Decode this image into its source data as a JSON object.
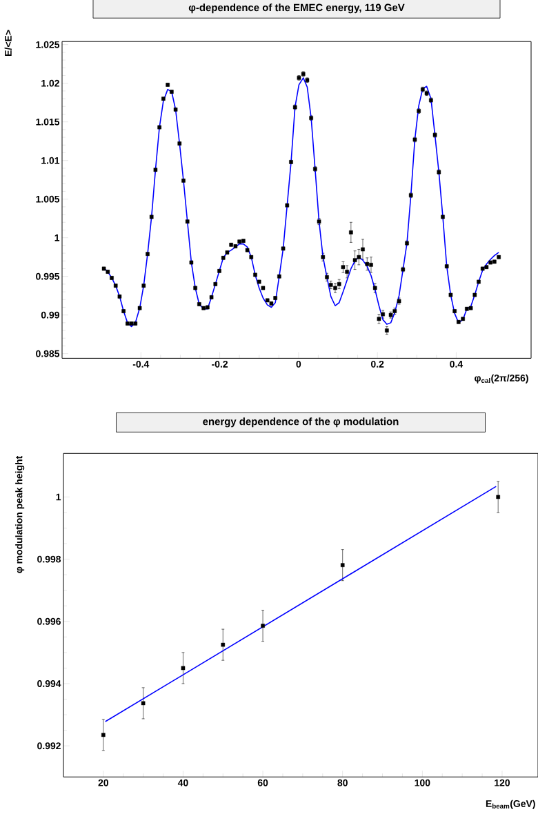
{
  "chart_data": [
    {
      "type": "scatter",
      "title": "φ-dependence of the EMEC energy, 119 GeV",
      "xlabel": "φ$_{cal}$(2π/256)",
      "ylabel": "E/<E>",
      "xlim": [
        -0.6,
        0.59
      ],
      "ylim": [
        0.9844,
        1.0254
      ],
      "xticks": [
        -0.4,
        -0.2,
        0,
        0.2,
        0.4
      ],
      "yticks": [
        0.985,
        0.99,
        0.995,
        1,
        1.005,
        1.01,
        1.015,
        1.02,
        1.025
      ],
      "series": [
        {
          "marker": "square",
          "color": "#000000",
          "x": [
            -0.494,
            -0.484,
            -0.474,
            -0.464,
            -0.454,
            -0.444,
            -0.434,
            -0.424,
            -0.414,
            -0.403,
            -0.393,
            -0.383,
            -0.373,
            -0.363,
            -0.353,
            -0.343,
            -0.332,
            -0.322,
            -0.312,
            -0.302,
            -0.292,
            -0.282,
            -0.272,
            -0.262,
            -0.252,
            -0.241,
            -0.231,
            -0.221,
            -0.211,
            -0.201,
            -0.191,
            -0.181,
            -0.171,
            -0.16,
            -0.15,
            -0.14,
            -0.13,
            -0.12,
            -0.11,
            -0.1,
            -0.09,
            -0.079,
            -0.069,
            -0.059,
            -0.049,
            -0.039,
            -0.029,
            -0.019,
            -0.009,
            0.001,
            0.012,
            0.022,
            0.032,
            0.042,
            0.052,
            0.062,
            0.072,
            0.082,
            0.093,
            0.103,
            0.113,
            0.123,
            0.133,
            0.143,
            0.153,
            0.163,
            0.174,
            0.184,
            0.194,
            0.204,
            0.214,
            0.224,
            0.234,
            0.244,
            0.255,
            0.265,
            0.275,
            0.285,
            0.295,
            0.305,
            0.315,
            0.325,
            0.336,
            0.346,
            0.356,
            0.366,
            0.376,
            0.386,
            0.396,
            0.406,
            0.417,
            0.427,
            0.437,
            0.447,
            0.457,
            0.467,
            0.477,
            0.487,
            0.497,
            0.508
          ],
          "values": [
            0.996,
            0.9956,
            0.9948,
            0.9938,
            0.9924,
            0.9905,
            0.9889,
            0.9889,
            0.9889,
            0.9909,
            0.9938,
            0.9979,
            1.0027,
            1.0088,
            1.0143,
            1.018,
            1.0198,
            1.0189,
            1.0166,
            1.0122,
            1.0074,
            1.0021,
            0.9968,
            0.9935,
            0.9914,
            0.9909,
            0.991,
            0.9923,
            0.994,
            0.9957,
            0.9974,
            0.9981,
            0.9991,
            0.9989,
            0.9995,
            0.9996,
            0.9984,
            0.9975,
            0.9952,
            0.9943,
            0.9935,
            0.9919,
            0.9915,
            0.9922,
            0.995,
            0.9986,
            1.0042,
            1.0098,
            1.0169,
            1.0207,
            1.0212,
            1.0204,
            1.0155,
            1.0089,
            1.0021,
            0.9975,
            0.9949,
            0.9939,
            0.9935,
            0.994,
            0.9962,
            0.9956,
            1.0007,
            0.9971,
            0.9975,
            0.9985,
            0.9966,
            0.9965,
            0.9935,
            0.9895,
            0.9901,
            0.988,
            0.99,
            0.9905,
            0.9918,
            0.9959,
            0.9993,
            1.0055,
            1.0127,
            1.0164,
            1.0192,
            1.0187,
            1.0178,
            1.0133,
            1.0085,
            1.0027,
            0.9963,
            0.9926,
            0.9905,
            0.9891,
            0.9895,
            0.9908,
            0.9909,
            0.9926,
            0.9943,
            0.996,
            0.9962,
            0.9968,
            0.9969,
            0.9975
          ],
          "errors": [
            0.0002,
            0.0002,
            0.0002,
            0.0002,
            0.0002,
            0.0002,
            0.0002,
            0.0002,
            0.0002,
            0.0002,
            0.0002,
            0.0002,
            0.0002,
            0.0002,
            0.0002,
            0.0002,
            0.0002,
            0.0002,
            0.0002,
            0.0002,
            0.0002,
            0.0002,
            0.0002,
            0.0002,
            0.0002,
            0.0002,
            0.0002,
            0.0002,
            0.0002,
            0.0002,
            0.0002,
            0.0002,
            0.0002,
            0.0002,
            0.0002,
            0.0002,
            0.0002,
            0.0002,
            0.0002,
            0.0002,
            0.0002,
            0.0002,
            0.0002,
            0.0002,
            0.0002,
            0.0002,
            0.0002,
            0.0002,
            0.0003,
            0.0003,
            0.0003,
            0.0003,
            0.0003,
            0.0003,
            0.0004,
            0.0005,
            0.0005,
            0.0005,
            0.0006,
            0.0006,
            0.0007,
            0.0008,
            0.0013,
            0.0012,
            0.001,
            0.0013,
            0.0008,
            0.001,
            0.0006,
            0.0006,
            0.0005,
            0.0005,
            0.0004,
            0.0004,
            0.0004,
            0.0003,
            0.0003,
            0.0003,
            0.0003,
            0.0003,
            0.0003,
            0.0003,
            0.0003,
            0.0003,
            0.0003,
            0.0002,
            0.0002,
            0.0002,
            0.0002,
            0.0002,
            0.0002,
            0.0002,
            0.0002,
            0.0002,
            0.0002,
            0.0002,
            0.0002,
            0.0002,
            0.0002,
            0.0002
          ]
        },
        {
          "type": "line",
          "color": "#0000ff",
          "x": [
            -0.494,
            -0.484,
            -0.474,
            -0.464,
            -0.454,
            -0.444,
            -0.434,
            -0.424,
            -0.414,
            -0.403,
            -0.393,
            -0.383,
            -0.373,
            -0.363,
            -0.353,
            -0.343,
            -0.332,
            -0.322,
            -0.312,
            -0.302,
            -0.292,
            -0.282,
            -0.272,
            -0.262,
            -0.252,
            -0.241,
            -0.231,
            -0.221,
            -0.211,
            -0.201,
            -0.191,
            -0.181,
            -0.171,
            -0.16,
            -0.15,
            -0.14,
            -0.13,
            -0.12,
            -0.11,
            -0.1,
            -0.09,
            -0.079,
            -0.069,
            -0.059,
            -0.049,
            -0.039,
            -0.029,
            -0.019,
            -0.009,
            0.001,
            0.012,
            0.022,
            0.032,
            0.042,
            0.052,
            0.062,
            0.072,
            0.082,
            0.093,
            0.103,
            0.113,
            0.123,
            0.133,
            0.143,
            0.153,
            0.163,
            0.174,
            0.184,
            0.194,
            0.204,
            0.214,
            0.224,
            0.234,
            0.244,
            0.255,
            0.265,
            0.275,
            0.285,
            0.295,
            0.305,
            0.315,
            0.325,
            0.336,
            0.346,
            0.356,
            0.366,
            0.376,
            0.386,
            0.396,
            0.406,
            0.417,
            0.427,
            0.437,
            0.447,
            0.457,
            0.467,
            0.477,
            0.487,
            0.497,
            0.508
          ],
          "values": [
            0.9961,
            0.9956,
            0.9948,
            0.9938,
            0.9924,
            0.9905,
            0.989,
            0.9885,
            0.989,
            0.9909,
            0.9938,
            0.9979,
            1.0027,
            1.0088,
            1.0143,
            1.0177,
            1.0192,
            1.0189,
            1.0166,
            1.0122,
            1.0074,
            1.0021,
            0.9968,
            0.9935,
            0.9914,
            0.9908,
            0.9908,
            0.9923,
            0.994,
            0.9957,
            0.9974,
            0.9981,
            0.9984,
            0.9988,
            0.9992,
            0.9992,
            0.9988,
            0.9975,
            0.9952,
            0.9935,
            0.9922,
            0.9913,
            0.991,
            0.9916,
            0.995,
            0.9986,
            1.0042,
            1.0098,
            1.0169,
            1.0198,
            1.0207,
            1.0195,
            1.0155,
            1.0089,
            1.0021,
            0.9975,
            0.9949,
            0.9924,
            0.9912,
            0.9916,
            0.993,
            0.9945,
            0.996,
            0.997,
            0.9975,
            0.9971,
            0.9963,
            0.9951,
            0.9933,
            0.9912,
            0.9894,
            0.9888,
            0.989,
            0.9903,
            0.9925,
            0.9959,
            0.9993,
            1.0055,
            1.0127,
            1.0171,
            1.0193,
            1.0196,
            1.018,
            1.0133,
            1.0085,
            1.0027,
            0.9963,
            0.9926,
            0.9902,
            0.989,
            0.9894,
            0.9908,
            0.9911,
            0.9926,
            0.9943,
            0.9958,
            0.9966,
            0.9972,
            0.9977,
            0.9981
          ]
        }
      ]
    },
    {
      "type": "scatter",
      "title": "energy dependence of the  φ modulation",
      "xlabel": "E$_{beam}$(GeV)",
      "ylabel": "φ modulation peak height",
      "xlim": [
        10,
        129
      ],
      "ylim": [
        0.991,
        1.0014
      ],
      "xticks": [
        20,
        40,
        60,
        80,
        100,
        120
      ],
      "yticks": [
        0.992,
        0.994,
        0.996,
        0.998,
        1
      ],
      "series": [
        {
          "marker": "square",
          "color": "#000000",
          "x": [
            20,
            30,
            40,
            50,
            60,
            80,
            119
          ],
          "values": [
            0.99235,
            0.99337,
            0.9945,
            0.99525,
            0.99586,
            0.99781,
            1.0
          ],
          "errors": [
            0.0005,
            0.0005,
            0.0005,
            0.0005,
            0.0005,
            0.0005,
            0.0005
          ]
        },
        {
          "type": "line",
          "color": "#0000ff",
          "x": [
            20.5,
            118.5
          ],
          "values": [
            0.99278,
            1.00034
          ]
        }
      ]
    }
  ]
}
